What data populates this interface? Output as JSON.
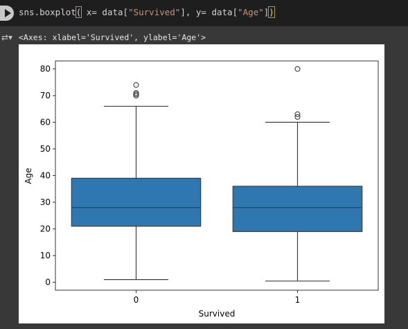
{
  "code_cell": {
    "parts": [
      "sns.boxplot",
      "(",
      " x= data[",
      "\"Survived\"",
      "], y= data[",
      "\"Age\"",
      "]",
      ")"
    ]
  },
  "output": {
    "repr": "<Axes: xlabel='Survived', ylabel='Age'>"
  },
  "icons": {
    "run": "play-icon",
    "output": "output-collapse-icon"
  },
  "colors": {
    "box_fill": "#2e77b0",
    "outline": "#3c3c3c",
    "bg_dark": "#1e1e1e"
  },
  "chart_data": {
    "type": "boxplot",
    "title": "",
    "xlabel": "Survived",
    "ylabel": "Age",
    "categories": [
      "0",
      "1"
    ],
    "ylim": [
      -3,
      83
    ],
    "yticks": [
      0,
      10,
      20,
      30,
      40,
      50,
      60,
      70,
      80
    ],
    "boxes": [
      {
        "category": "0",
        "whislo": 1,
        "q1": 21,
        "med": 28,
        "q3": 39,
        "whishi": 66,
        "fliers": [
          70,
          70.5,
          71,
          74
        ]
      },
      {
        "category": "1",
        "whislo": 0.42,
        "q1": 19,
        "med": 28,
        "q3": 36,
        "whishi": 60,
        "fliers": [
          62,
          63,
          80
        ]
      }
    ]
  }
}
